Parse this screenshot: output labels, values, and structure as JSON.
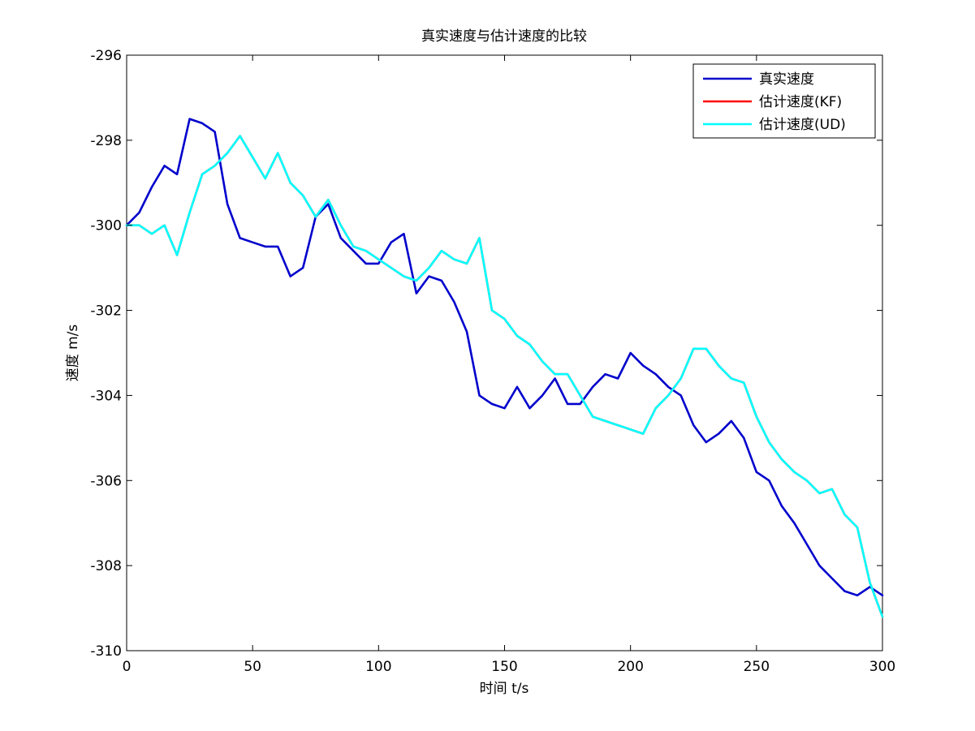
{
  "chart_data": {
    "type": "line",
    "title": "真实速度与估计速度的比较",
    "xlabel": "时间 t/s",
    "ylabel": "速度 m/s",
    "xlim": [
      0,
      300
    ],
    "ylim": [
      -310,
      -296
    ],
    "xticks": [
      0,
      50,
      100,
      150,
      200,
      250,
      300
    ],
    "yticks": [
      -296,
      -298,
      -300,
      -302,
      -304,
      -306,
      -308,
      -310
    ],
    "xtick_labels": [
      "0",
      "50",
      "100",
      "150",
      "200",
      "250",
      "300"
    ],
    "ytick_labels": [
      "-296",
      "-298",
      "-300",
      "-302",
      "-304",
      "-306",
      "-308",
      "-310"
    ],
    "grid": false,
    "legend_position": "top-right",
    "x": [
      0,
      5,
      10,
      15,
      20,
      25,
      30,
      35,
      40,
      45,
      50,
      55,
      60,
      65,
      70,
      75,
      80,
      85,
      90,
      95,
      100,
      105,
      110,
      115,
      120,
      125,
      130,
      135,
      140,
      145,
      150,
      155,
      160,
      165,
      170,
      175,
      180,
      185,
      190,
      195,
      200,
      205,
      210,
      215,
      220,
      225,
      230,
      235,
      240,
      245,
      250,
      255,
      260,
      265,
      270,
      275,
      280,
      285,
      290,
      295,
      300
    ],
    "series": [
      {
        "name": "真实速度",
        "color": "#0000cc",
        "values": [
          -300.0,
          -299.7,
          -299.1,
          -298.6,
          -298.8,
          -297.5,
          -297.6,
          -297.8,
          -299.5,
          -300.3,
          -300.4,
          -300.5,
          -300.5,
          -301.2,
          -301.0,
          -299.8,
          -299.5,
          -300.3,
          -300.6,
          -300.9,
          -300.9,
          -300.4,
          -300.2,
          -301.6,
          -301.2,
          -301.3,
          -301.8,
          -302.5,
          -304.0,
          -304.2,
          -304.3,
          -303.8,
          -304.3,
          -304.0,
          -303.6,
          -304.2,
          -304.2,
          -303.8,
          -303.5,
          -303.6,
          -303.0,
          -303.3,
          -303.5,
          -303.8,
          -304.0,
          -304.7,
          -305.1,
          -304.9,
          -304.6,
          -305.0,
          -305.8,
          -306.0,
          -306.6,
          -307.0,
          -307.5,
          -308.0,
          -308.3,
          -308.6,
          -308.7,
          -308.5,
          -308.7
        ]
      },
      {
        "name": "估计速度(KF)",
        "color": "#ff0000",
        "values": [
          -300.0,
          -300.0,
          -300.2,
          -300.0,
          -300.7,
          -299.7,
          -298.8,
          -298.6,
          -298.3,
          -297.9,
          -298.4,
          -298.9,
          -298.3,
          -299.0,
          -299.3,
          -299.8,
          -299.4,
          -300.0,
          -300.5,
          -300.6,
          -300.8,
          -301.0,
          -301.2,
          -301.3,
          -301.0,
          -300.6,
          -300.8,
          -300.9,
          -300.3,
          -302.0,
          -302.2,
          -302.6,
          -302.8,
          -303.2,
          -303.5,
          -303.5,
          -304.0,
          -304.5,
          -304.6,
          -304.7,
          -304.8,
          -304.9,
          -304.3,
          -304.0,
          -303.6,
          -302.9,
          -302.9,
          -303.3,
          -303.6,
          -303.7,
          -304.5,
          -305.1,
          -305.5,
          -305.8,
          -306.0,
          -306.3,
          -306.2,
          -306.8,
          -307.1,
          -308.4,
          -309.2
        ]
      },
      {
        "name": "估计速度(UD)",
        "color": "#00ffff",
        "values": [
          -300.0,
          -300.0,
          -300.2,
          -300.0,
          -300.7,
          -299.7,
          -298.8,
          -298.6,
          -298.3,
          -297.9,
          -298.4,
          -298.9,
          -298.3,
          -299.0,
          -299.3,
          -299.8,
          -299.4,
          -300.0,
          -300.5,
          -300.6,
          -300.8,
          -301.0,
          -301.2,
          -301.3,
          -301.0,
          -300.6,
          -300.8,
          -300.9,
          -300.3,
          -302.0,
          -302.2,
          -302.6,
          -302.8,
          -303.2,
          -303.5,
          -303.5,
          -304.0,
          -304.5,
          -304.6,
          -304.7,
          -304.8,
          -304.9,
          -304.3,
          -304.0,
          -303.6,
          -302.9,
          -302.9,
          -303.3,
          -303.6,
          -303.7,
          -304.5,
          -305.1,
          -305.5,
          -305.8,
          -306.0,
          -306.3,
          -306.2,
          -306.8,
          -307.1,
          -308.4,
          -309.2
        ]
      }
    ]
  }
}
